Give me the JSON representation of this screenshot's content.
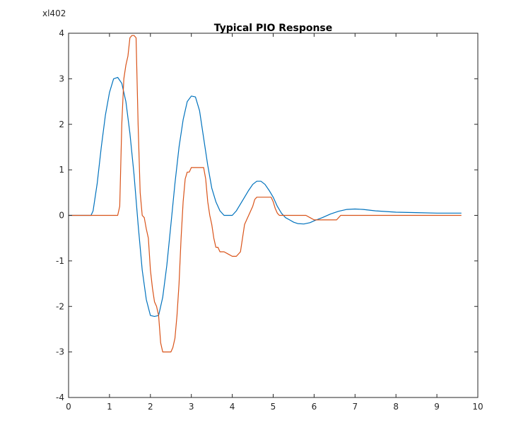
{
  "chart_data": {
    "type": "line",
    "title": "Typical PIO Response",
    "scale_label": "xl402",
    "xlim": [
      0,
      10
    ],
    "ylim": [
      -4,
      4
    ],
    "x_ticks": [
      "0",
      "1",
      "2",
      "3",
      "4",
      "5",
      "6",
      "7",
      "8",
      "9",
      "10"
    ],
    "y_ticks": [
      "-4",
      "-3",
      "-2",
      "-1",
      "0",
      "1",
      "2",
      "3",
      "4"
    ],
    "grid": false,
    "series": [
      {
        "color": "#0072BD",
        "x": [
          0,
          0.55,
          0.6,
          0.7,
          0.8,
          0.9,
          1.0,
          1.1,
          1.2,
          1.3,
          1.4,
          1.5,
          1.6,
          1.7,
          1.8,
          1.9,
          2.0,
          2.1,
          2.2,
          2.3,
          2.4,
          2.5,
          2.6,
          2.7,
          2.8,
          2.9,
          3.0,
          3.1,
          3.2,
          3.3,
          3.4,
          3.5,
          3.6,
          3.7,
          3.8,
          3.9,
          4.0,
          4.1,
          4.2,
          4.3,
          4.4,
          4.5,
          4.6,
          4.7,
          4.8,
          4.9,
          5.0,
          5.1,
          5.2,
          5.3,
          5.4,
          5.5,
          5.6,
          5.75,
          5.9,
          6.0,
          6.2,
          6.4,
          6.6,
          6.8,
          7.0,
          7.2,
          7.5,
          8.0,
          8.5,
          9.0,
          9.6
        ],
        "y": [
          0,
          0,
          0.1,
          0.7,
          1.5,
          2.2,
          2.7,
          3.0,
          3.03,
          2.9,
          2.5,
          1.8,
          0.9,
          -0.2,
          -1.2,
          -1.85,
          -2.2,
          -2.22,
          -2.2,
          -1.8,
          -1.1,
          -0.2,
          0.7,
          1.5,
          2.1,
          2.5,
          2.62,
          2.6,
          2.3,
          1.7,
          1.1,
          0.6,
          0.3,
          0.1,
          0.0,
          0.0,
          0.0,
          0.1,
          0.25,
          0.4,
          0.55,
          0.68,
          0.75,
          0.75,
          0.68,
          0.55,
          0.4,
          0.2,
          0.05,
          -0.05,
          -0.1,
          -0.15,
          -0.18,
          -0.19,
          -0.16,
          -0.12,
          -0.05,
          0.03,
          0.09,
          0.13,
          0.14,
          0.13,
          0.1,
          0.07,
          0.06,
          0.05,
          0.05
        ]
      },
      {
        "color": "#D95319",
        "x": [
          0,
          1.2,
          1.25,
          1.3,
          1.35,
          1.4,
          1.45,
          1.5,
          1.55,
          1.6,
          1.65,
          1.7,
          1.75,
          1.8,
          1.85,
          1.9,
          1.95,
          2.0,
          2.05,
          2.1,
          2.15,
          2.2,
          2.25,
          2.3,
          2.4,
          2.5,
          2.55,
          2.6,
          2.65,
          2.7,
          2.75,
          2.8,
          2.85,
          2.9,
          2.95,
          3.0,
          3.05,
          3.1,
          3.2,
          3.3,
          3.35,
          3.4,
          3.45,
          3.5,
          3.55,
          3.6,
          3.65,
          3.7,
          3.8,
          3.9,
          4.0,
          4.1,
          4.2,
          4.25,
          4.3,
          4.35,
          4.4,
          4.5,
          4.55,
          4.6,
          4.65,
          4.7,
          4.8,
          4.9,
          4.95,
          5.0,
          5.05,
          5.1,
          5.15,
          5.2,
          5.5,
          5.8,
          5.9,
          6.0,
          6.1,
          6.5,
          6.55,
          6.6,
          6.65,
          7.0,
          9.6
        ],
        "y": [
          0,
          0,
          0.2,
          2.0,
          3.0,
          3.3,
          3.5,
          3.9,
          3.95,
          3.95,
          3.9,
          2.0,
          0.5,
          0.0,
          -0.05,
          -0.3,
          -0.5,
          -1.2,
          -1.6,
          -1.9,
          -2.0,
          -2.2,
          -2.8,
          -3.0,
          -3.0,
          -3.0,
          -2.9,
          -2.7,
          -2.2,
          -1.5,
          -0.5,
          0.3,
          0.8,
          0.95,
          0.95,
          1.05,
          1.05,
          1.05,
          1.05,
          1.05,
          0.8,
          0.3,
          0.0,
          -0.2,
          -0.5,
          -0.7,
          -0.7,
          -0.8,
          -0.8,
          -0.85,
          -0.9,
          -0.9,
          -0.8,
          -0.5,
          -0.2,
          -0.1,
          0.0,
          0.2,
          0.35,
          0.4,
          0.4,
          0.4,
          0.4,
          0.4,
          0.4,
          0.3,
          0.15,
          0.05,
          0.0,
          0.0,
          0.0,
          0.0,
          -0.05,
          -0.1,
          -0.1,
          -0.1,
          -0.1,
          -0.05,
          0.0,
          0.0,
          0.0
        ]
      }
    ]
  }
}
